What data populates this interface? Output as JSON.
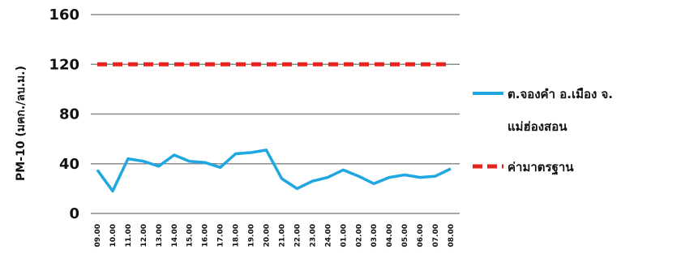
{
  "chart_data": {
    "type": "line",
    "ylabel": "PM-10 (มคก./ลบ.ม.)",
    "ylim": [
      0,
      160
    ],
    "yticks": [
      "0",
      "40",
      "80",
      "120",
      "160"
    ],
    "grid": true,
    "legend_position": "right",
    "categories": [
      "09.00",
      "10.00",
      "11.00",
      "12.00",
      "13.00",
      "14.00",
      "15.00",
      "16.00",
      "17.00",
      "18.00",
      "19.00",
      "20.00",
      "21.00",
      "22.00",
      "23.00",
      "24.00",
      "01.00",
      "02.00",
      "03.00",
      "04.00",
      "05.00",
      "06.00",
      "07.00",
      "08.00"
    ],
    "series": [
      {
        "name": "ต.จองคำ อ.เมือง จ.แม่ฮ่องสอน",
        "name_lines": [
          "ต.จองคำ อ.เมือง จ.",
          "แม่ฮ่องสอน"
        ],
        "color": "#1ea7e1",
        "style": "solid",
        "values": [
          35,
          18,
          44,
          42,
          38,
          47,
          42,
          41,
          37,
          48,
          49,
          51,
          28,
          20,
          26,
          29,
          35,
          30,
          24,
          29,
          31,
          29,
          30,
          36
        ]
      },
      {
        "name": "ค่ามาตรฐาน",
        "color": "#e8221e",
        "style": "dashed",
        "values": [
          120,
          120,
          120,
          120,
          120,
          120,
          120,
          120,
          120,
          120,
          120,
          120,
          120,
          120,
          120,
          120,
          120,
          120,
          120,
          120,
          120,
          120,
          120,
          120
        ]
      }
    ]
  }
}
